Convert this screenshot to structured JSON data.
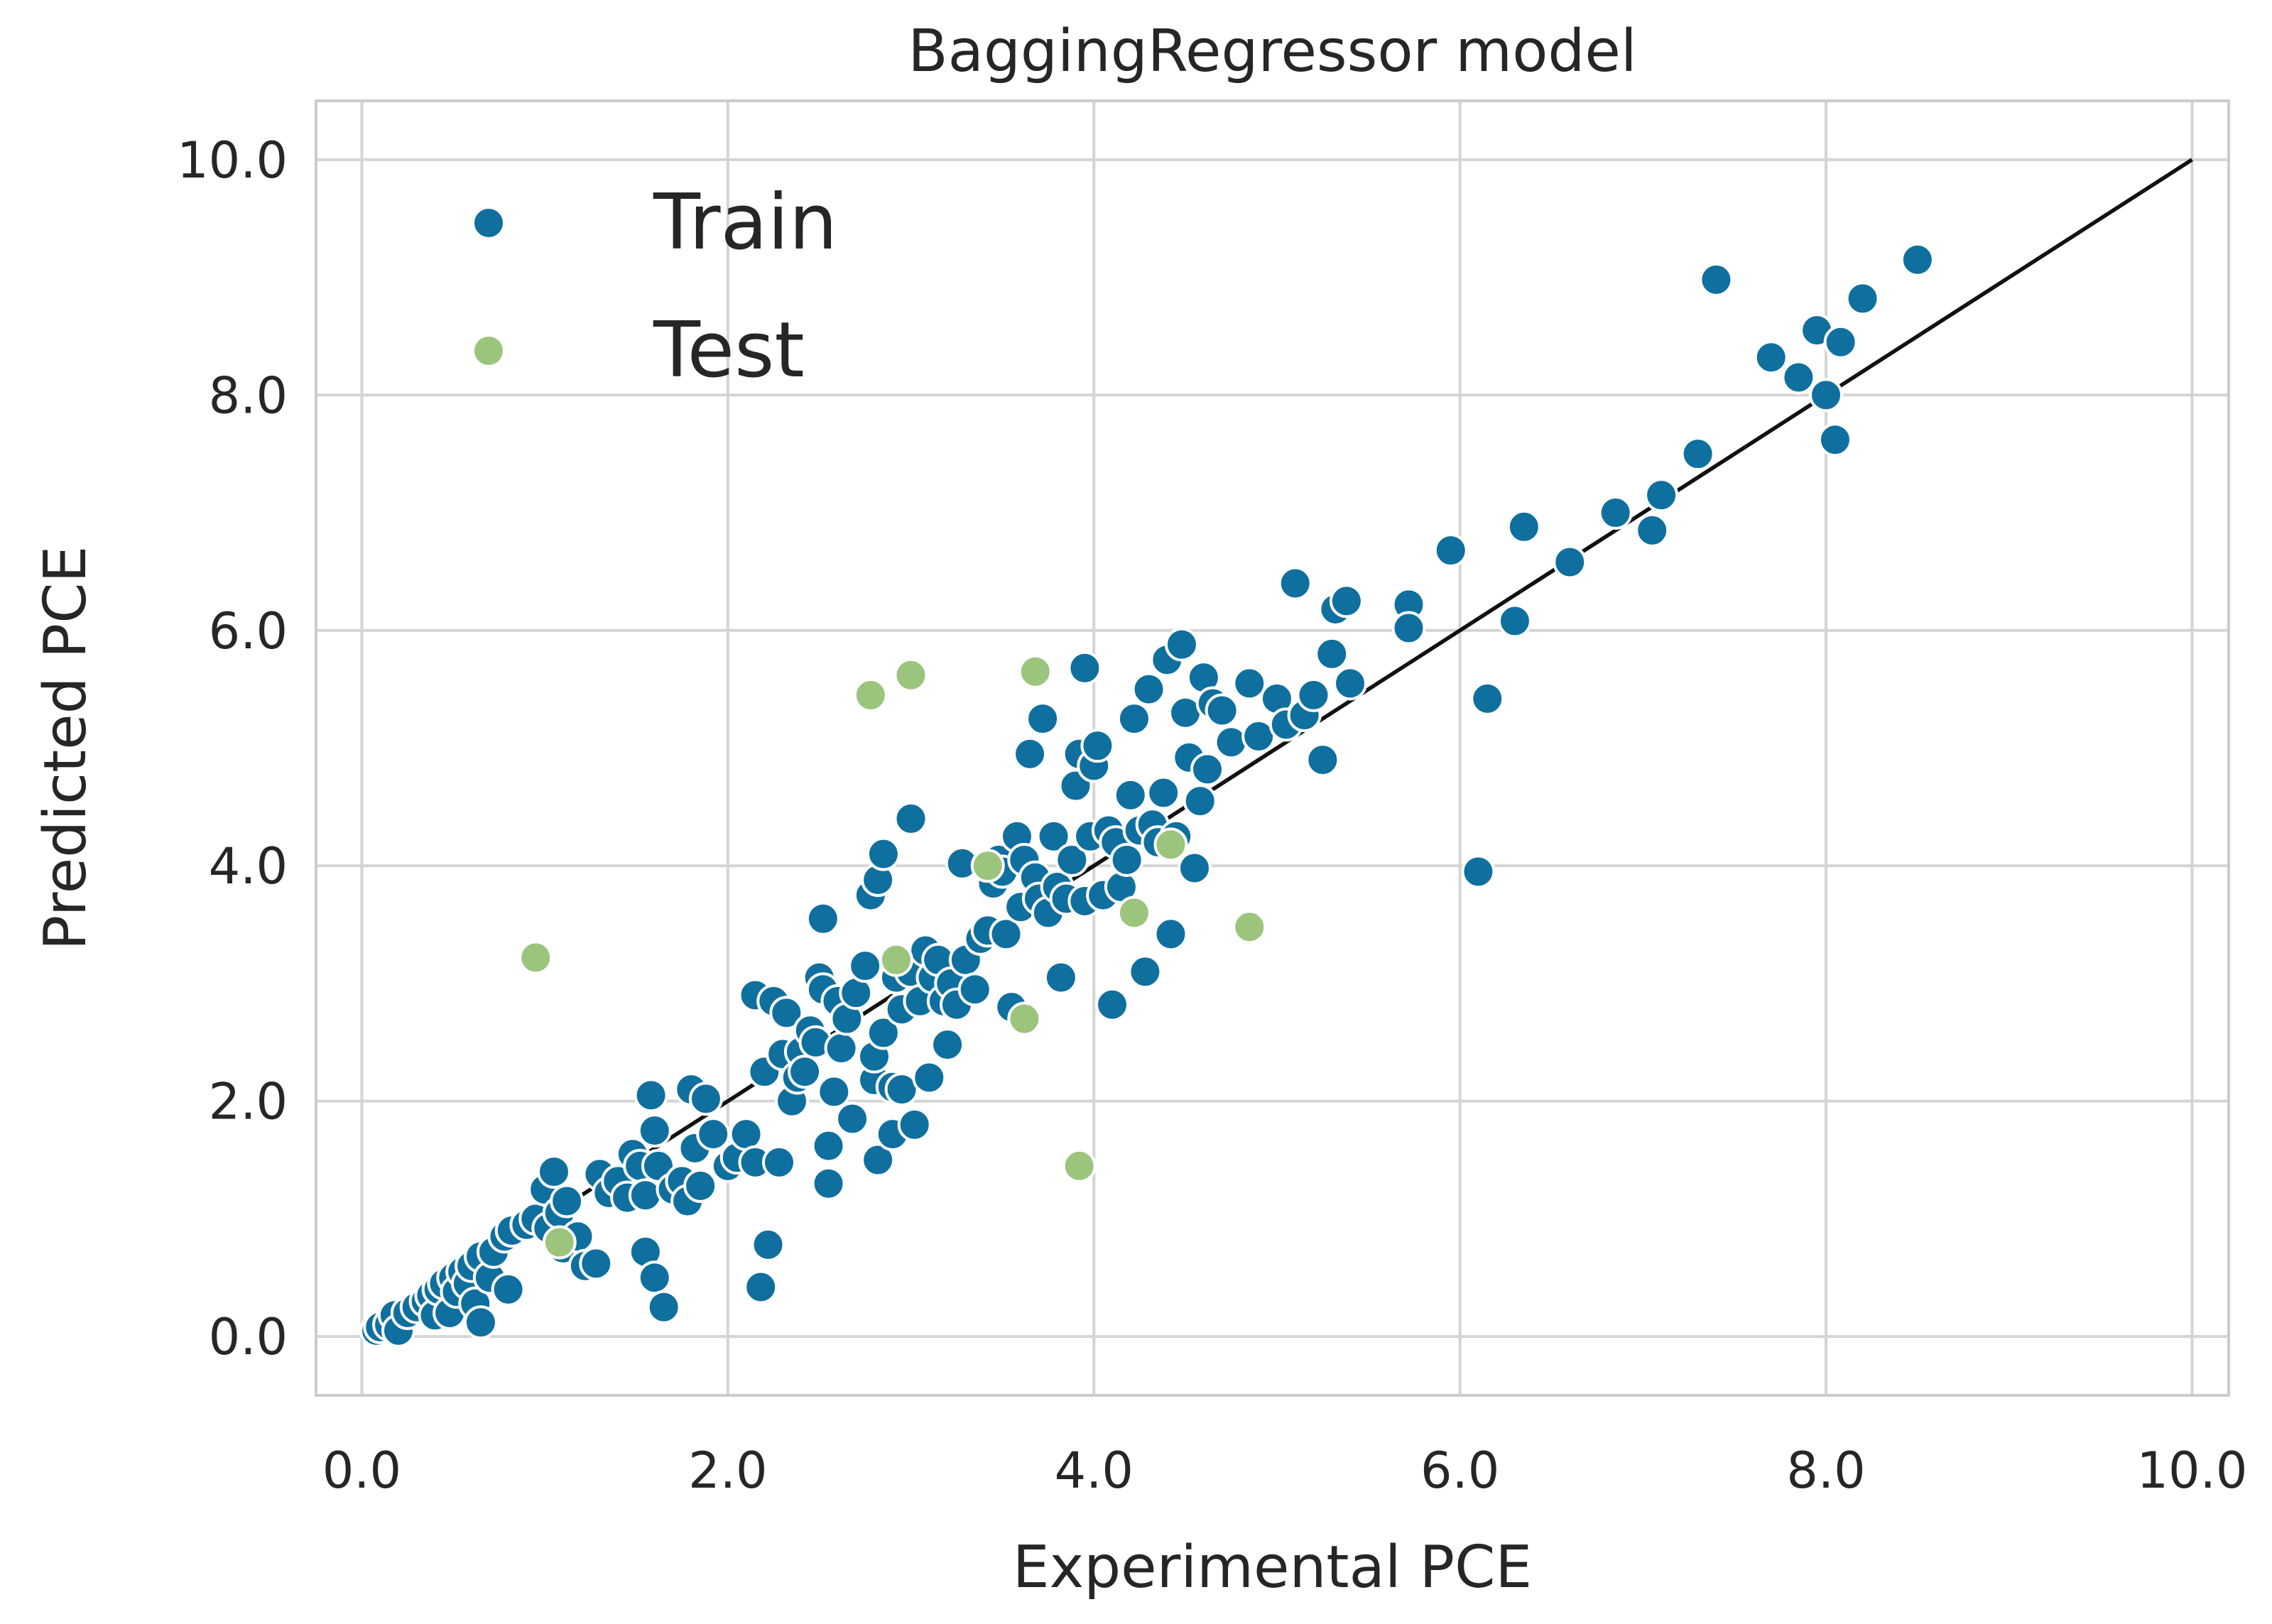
{
  "chart_data": {
    "type": "scatter",
    "title": "BaggingRegressor model",
    "xlabel": "Experimental PCE",
    "ylabel": "Predicted PCE",
    "xlim": [
      -0.25,
      10.2
    ],
    "ylim": [
      -0.5,
      10.5
    ],
    "xticks": [
      0,
      2,
      4,
      6,
      8,
      10
    ],
    "yticks": [
      0,
      2,
      4,
      6,
      8,
      10
    ],
    "xtick_labels": [
      "0.0",
      "2.0",
      "4.0",
      "6.0",
      "8.0",
      "10.0"
    ],
    "ytick_labels": [
      "0.0",
      "2.0",
      "4.0",
      "6.0",
      "8.0",
      "10.0"
    ],
    "grid": true,
    "legend_position": "top-left",
    "reference_line": {
      "x": [
        0,
        10
      ],
      "y": [
        0,
        10
      ],
      "color": "#111111"
    },
    "colors": {
      "train": "#0f6f9e",
      "test": "#9bc47c",
      "grid": "#d4d4d4",
      "spine": "#cccccc"
    },
    "series": [
      {
        "name": "Train",
        "points": [
          [
            0.08,
            0.05
          ],
          [
            0.1,
            0.08
          ],
          [
            0.15,
            0.1
          ],
          [
            0.18,
            0.18
          ],
          [
            0.2,
            0.05
          ],
          [
            0.25,
            0.2
          ],
          [
            0.3,
            0.25
          ],
          [
            0.35,
            0.3
          ],
          [
            0.38,
            0.35
          ],
          [
            0.4,
            0.18
          ],
          [
            0.42,
            0.4
          ],
          [
            0.45,
            0.45
          ],
          [
            0.48,
            0.2
          ],
          [
            0.5,
            0.5
          ],
          [
            0.52,
            0.38
          ],
          [
            0.55,
            0.55
          ],
          [
            0.58,
            0.45
          ],
          [
            0.6,
            0.6
          ],
          [
            0.62,
            0.28
          ],
          [
            0.65,
            0.12
          ],
          [
            0.65,
            0.68
          ],
          [
            0.7,
            0.5
          ],
          [
            0.72,
            0.72
          ],
          [
            0.78,
            0.85
          ],
          [
            0.8,
            0.4
          ],
          [
            0.82,
            0.9
          ],
          [
            0.9,
            0.95
          ],
          [
            0.95,
            1.0
          ],
          [
            1.0,
            1.25
          ],
          [
            1.02,
            0.92
          ],
          [
            1.05,
            1.4
          ],
          [
            1.08,
            1.05
          ],
          [
            1.1,
            0.75
          ],
          [
            1.12,
            1.15
          ],
          [
            1.18,
            0.85
          ],
          [
            1.22,
            0.6
          ],
          [
            1.28,
            0.62
          ],
          [
            1.3,
            1.38
          ],
          [
            1.35,
            1.22
          ],
          [
            1.4,
            1.32
          ],
          [
            1.45,
            1.18
          ],
          [
            1.48,
            1.55
          ],
          [
            1.52,
            1.45
          ],
          [
            1.55,
            0.72
          ],
          [
            1.55,
            1.2
          ],
          [
            1.58,
            2.05
          ],
          [
            1.6,
            1.75
          ],
          [
            1.6,
            0.5
          ],
          [
            1.62,
            1.45
          ],
          [
            1.65,
            0.25
          ],
          [
            1.7,
            1.25
          ],
          [
            1.75,
            1.32
          ],
          [
            1.78,
            1.15
          ],
          [
            1.8,
            2.1
          ],
          [
            1.82,
            1.6
          ],
          [
            1.85,
            1.28
          ],
          [
            1.88,
            2.02
          ],
          [
            1.92,
            1.72
          ],
          [
            2.0,
            1.45
          ],
          [
            2.05,
            1.52
          ],
          [
            2.1,
            1.72
          ],
          [
            2.15,
            1.48
          ],
          [
            2.15,
            2.9
          ],
          [
            2.18,
            0.42
          ],
          [
            2.2,
            2.25
          ],
          [
            2.22,
            0.78
          ],
          [
            2.25,
            2.85
          ],
          [
            2.28,
            1.48
          ],
          [
            2.3,
            2.4
          ],
          [
            2.32,
            2.75
          ],
          [
            2.35,
            2.0
          ],
          [
            2.38,
            2.2
          ],
          [
            2.4,
            2.42
          ],
          [
            2.42,
            2.25
          ],
          [
            2.45,
            2.6
          ],
          [
            2.48,
            2.5
          ],
          [
            2.5,
            3.05
          ],
          [
            2.52,
            2.95
          ],
          [
            2.52,
            3.55
          ],
          [
            2.55,
            1.62
          ],
          [
            2.55,
            1.3
          ],
          [
            2.58,
            2.08
          ],
          [
            2.6,
            2.85
          ],
          [
            2.62,
            2.45
          ],
          [
            2.65,
            2.7
          ],
          [
            2.68,
            1.85
          ],
          [
            2.7,
            2.92
          ],
          [
            2.75,
            3.15
          ],
          [
            2.78,
            3.75
          ],
          [
            2.8,
            2.18
          ],
          [
            2.8,
            2.38
          ],
          [
            2.82,
            1.5
          ],
          [
            2.82,
            3.88
          ],
          [
            2.85,
            4.1
          ],
          [
            2.85,
            2.58
          ],
          [
            2.9,
            2.12
          ],
          [
            2.9,
            1.72
          ],
          [
            2.92,
            3.05
          ],
          [
            2.95,
            2.78
          ],
          [
            2.95,
            2.1
          ],
          [
            3.0,
            3.1
          ],
          [
            3.0,
            4.4
          ],
          [
            3.02,
            1.8
          ],
          [
            3.05,
            2.85
          ],
          [
            3.08,
            3.28
          ],
          [
            3.1,
            2.2
          ],
          [
            3.12,
            3.05
          ],
          [
            3.15,
            3.2
          ],
          [
            3.18,
            2.85
          ],
          [
            3.2,
            2.48
          ],
          [
            3.22,
            3.0
          ],
          [
            3.25,
            2.82
          ],
          [
            3.28,
            4.02
          ],
          [
            3.3,
            3.2
          ],
          [
            3.35,
            2.95
          ],
          [
            3.38,
            3.38
          ],
          [
            3.42,
            3.45
          ],
          [
            3.45,
            3.85
          ],
          [
            3.48,
            4.05
          ],
          [
            3.5,
            3.95
          ],
          [
            3.52,
            3.42
          ],
          [
            3.55,
            2.8
          ],
          [
            3.58,
            4.25
          ],
          [
            3.6,
            3.65
          ],
          [
            3.62,
            4.05
          ],
          [
            3.65,
            4.95
          ],
          [
            3.68,
            3.9
          ],
          [
            3.7,
            3.72
          ],
          [
            3.72,
            5.25
          ],
          [
            3.75,
            3.6
          ],
          [
            3.78,
            4.25
          ],
          [
            3.8,
            3.82
          ],
          [
            3.82,
            3.05
          ],
          [
            3.85,
            3.72
          ],
          [
            3.88,
            4.05
          ],
          [
            3.9,
            4.68
          ],
          [
            3.92,
            4.95
          ],
          [
            3.95,
            5.68
          ],
          [
            3.95,
            3.7
          ],
          [
            3.98,
            4.25
          ],
          [
            4.0,
            4.85
          ],
          [
            4.02,
            5.02
          ],
          [
            4.05,
            3.75
          ],
          [
            4.08,
            4.3
          ],
          [
            4.1,
            2.82
          ],
          [
            4.12,
            4.2
          ],
          [
            4.15,
            3.82
          ],
          [
            4.18,
            4.05
          ],
          [
            4.2,
            4.6
          ],
          [
            4.22,
            5.25
          ],
          [
            4.25,
            4.3
          ],
          [
            4.28,
            3.1
          ],
          [
            4.3,
            5.5
          ],
          [
            4.32,
            4.35
          ],
          [
            4.35,
            4.2
          ],
          [
            4.38,
            4.62
          ],
          [
            4.4,
            5.75
          ],
          [
            4.42,
            3.42
          ],
          [
            4.45,
            4.25
          ],
          [
            4.48,
            5.88
          ],
          [
            4.5,
            5.3
          ],
          [
            4.52,
            4.92
          ],
          [
            4.55,
            3.98
          ],
          [
            4.58,
            4.55
          ],
          [
            4.6,
            5.6
          ],
          [
            4.62,
            4.82
          ],
          [
            4.65,
            5.38
          ],
          [
            4.7,
            5.32
          ],
          [
            4.75,
            5.05
          ],
          [
            4.85,
            5.55
          ],
          [
            4.9,
            5.1
          ],
          [
            5.0,
            5.42
          ],
          [
            5.05,
            5.2
          ],
          [
            5.1,
            6.4
          ],
          [
            5.15,
            5.28
          ],
          [
            5.2,
            5.45
          ],
          [
            5.25,
            4.9
          ],
          [
            5.3,
            5.8
          ],
          [
            5.32,
            6.18
          ],
          [
            5.38,
            6.25
          ],
          [
            5.4,
            5.55
          ],
          [
            5.72,
            6.22
          ],
          [
            5.72,
            6.02
          ],
          [
            5.95,
            6.68
          ],
          [
            6.1,
            3.95
          ],
          [
            6.15,
            5.42
          ],
          [
            6.3,
            6.08
          ],
          [
            6.35,
            6.88
          ],
          [
            6.6,
            6.58
          ],
          [
            6.85,
            7.0
          ],
          [
            7.05,
            6.85
          ],
          [
            7.1,
            7.15
          ],
          [
            7.3,
            7.5
          ],
          [
            7.4,
            8.98
          ],
          [
            7.7,
            8.32
          ],
          [
            7.85,
            8.15
          ],
          [
            7.95,
            8.55
          ],
          [
            8.0,
            8.0
          ],
          [
            8.05,
            7.62
          ],
          [
            8.08,
            8.45
          ],
          [
            8.2,
            8.82
          ],
          [
            8.5,
            9.15
          ]
        ]
      },
      {
        "name": "Test",
        "points": [
          [
            0.95,
            3.22
          ],
          [
            1.08,
            0.8
          ],
          [
            2.78,
            5.45
          ],
          [
            2.92,
            3.2
          ],
          [
            3.0,
            5.62
          ],
          [
            3.42,
            4.0
          ],
          [
            3.62,
            2.7
          ],
          [
            3.68,
            5.65
          ],
          [
            3.92,
            1.45
          ],
          [
            4.22,
            3.6
          ],
          [
            4.42,
            4.18
          ],
          [
            4.85,
            3.48
          ]
        ]
      }
    ]
  }
}
